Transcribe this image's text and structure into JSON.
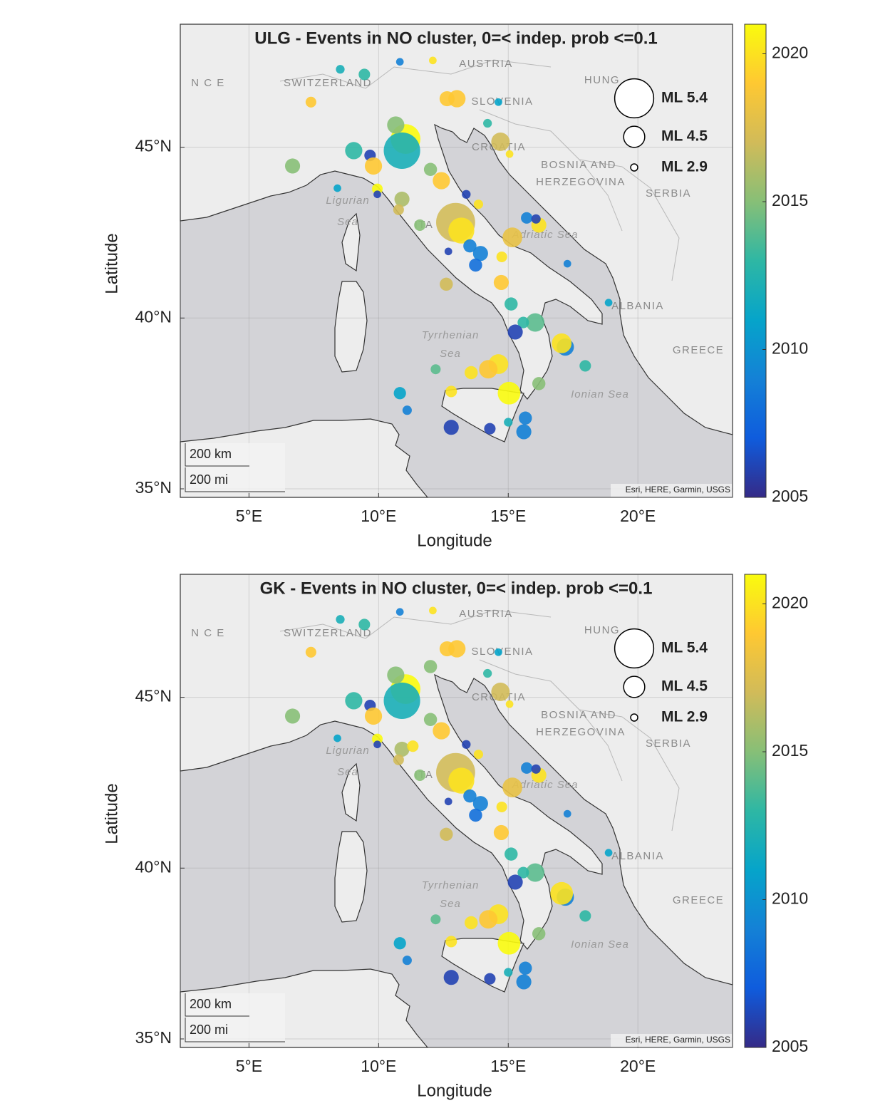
{
  "chart_data": [
    {
      "type": "scatter",
      "title": "ULG - Events in NO cluster, 0=< indep. prob <=0.1",
      "xlabel": "Longitude",
      "ylabel": "Latitude",
      "xlim": [
        2.35,
        23.65
      ],
      "ylim": [
        34.75,
        48.6
      ],
      "xticks": [
        {
          "value": 5,
          "label": "5°E"
        },
        {
          "value": 10,
          "label": "10°E"
        },
        {
          "value": 15,
          "label": "15°E"
        },
        {
          "value": 20,
          "label": "20°E"
        }
      ],
      "yticks": [
        {
          "value": 35,
          "label": "35°N"
        },
        {
          "value": 40,
          "label": "40°N"
        },
        {
          "value": 45,
          "label": "45°N"
        }
      ],
      "grid": true,
      "x": [
        11.04,
        10.9,
        12.97,
        13.19,
        9.04,
        9.67,
        9.8,
        6.68,
        7.39,
        8.52,
        9.45,
        10.82,
        12.09,
        12.64,
        13.02,
        14.62,
        14.7,
        15.05,
        14.2,
        10.66,
        12.0,
        12.42,
        9.95,
        10.9,
        10.77,
        11.59,
        13.38,
        13.85,
        13.52,
        13.93,
        13.74,
        12.69,
        15.16,
        14.75,
        16.18,
        15.71,
        16.07,
        17.28,
        18.87,
        12.61,
        14.73,
        15.11,
        16.04,
        15.58,
        15.27,
        17.2,
        17.06,
        17.97,
        14.62,
        14.23,
        12.2,
        13.57,
        15.03,
        16.18,
        12.8,
        10.82,
        11.1,
        12.8,
        14.29,
        15.66,
        15.6,
        15.0,
        8.41,
        9.95
      ],
      "y": [
        45.24,
        44.9,
        42.8,
        42.56,
        44.9,
        44.76,
        44.45,
        44.45,
        46.32,
        47.28,
        47.13,
        47.5,
        47.54,
        46.42,
        46.42,
        46.32,
        45.16,
        44.8,
        45.7,
        45.65,
        44.35,
        44.02,
        43.78,
        43.48,
        43.17,
        42.72,
        43.62,
        43.33,
        42.11,
        41.89,
        41.55,
        41.95,
        42.36,
        41.79,
        42.72,
        42.93,
        42.9,
        41.59,
        40.45,
        40.99,
        41.04,
        40.41,
        39.87,
        39.87,
        39.59,
        39.15,
        39.26,
        38.6,
        38.65,
        38.5,
        38.5,
        38.4,
        37.8,
        38.08,
        37.85,
        37.8,
        37.3,
        36.8,
        36.76,
        37.07,
        36.67,
        36.95,
        43.8,
        43.62
      ],
      "color_values": [
        2021,
        2012,
        2017,
        2020,
        2013,
        2006,
        2019,
        2015,
        2019,
        2012,
        2013,
        2009,
        2020,
        2019,
        2019,
        2011,
        2017,
        2020,
        2013,
        2015,
        2015,
        2019,
        2021,
        2016,
        2017,
        2015,
        2006,
        2020,
        2009,
        2009,
        2008,
        2006,
        2018,
        2020,
        2020,
        2009,
        2006,
        2009,
        2011,
        2017,
        2019,
        2013,
        2014,
        2013,
        2006,
        2009,
        2020,
        2013,
        2020,
        2019,
        2014,
        2020,
        2021,
        2015,
        2020,
        2011,
        2009,
        2006,
        2006,
        2009,
        2009,
        2012,
        2011,
        2006
      ],
      "sizes": [
        5.0,
        5.3,
        5.4,
        4.8,
        4.2,
        3.6,
        4.2,
        4.0,
        3.5,
        3.2,
        3.6,
        3.0,
        3.0,
        4.0,
        4.2,
        3.0,
        4.3,
        3.0,
        3.2,
        4.2,
        3.8,
        4.2,
        3.5,
        4.0,
        3.5,
        3.6,
        3.2,
        3.3,
        3.8,
        4.0,
        3.8,
        3.0,
        4.4,
        3.5,
        4.0,
        3.6,
        3.3,
        3.0,
        3.0,
        3.8,
        4.0,
        3.8,
        4.3,
        3.6,
        4.0,
        4.2,
        4.4,
        3.6,
        4.4,
        4.3,
        3.4,
        3.8,
        4.6,
        3.8,
        3.6,
        3.7,
        3.3,
        4.0,
        3.6,
        3.8,
        4.0,
        3.2,
        3.0,
        3.0
      ],
      "colorbar": {
        "colormap": "parula",
        "lim": [
          2005,
          2021
        ],
        "ticks": [
          2005,
          2010,
          2015,
          2020
        ]
      },
      "size_legend": [
        {
          "value": 5.4,
          "label": "ML 5.4"
        },
        {
          "value": 4.5,
          "label": "ML 4.5"
        },
        {
          "value": 2.9,
          "label": "ML 2.9"
        }
      ],
      "map_labels": [
        "N C E",
        "SWITZERLAND",
        "AUSTRIA",
        "HUNG",
        "SLOVENIA",
        "CROATIA",
        "BOSNIA AND",
        "HERZEGOVINA",
        "SERBIA",
        "ITA",
        "ALBANIA",
        "GREECE"
      ],
      "sea_labels": [
        "Ligurian",
        "Sea",
        "Adriatic Sea",
        "Tyrrhenian",
        "Sea",
        "Ionian Sea"
      ],
      "scale_bar": [
        "200 km",
        "200 mi"
      ],
      "attribution": "Esri, HERE, Garmin, USGS"
    },
    {
      "type": "scatter",
      "title": "GK - Events in NO cluster, 0=< indep. prob <=0.1",
      "xlabel": "Longitude",
      "ylabel": "Latitude",
      "xlim": [
        2.35,
        23.65
      ],
      "ylim": [
        34.75,
        48.6
      ],
      "xticks": [
        {
          "value": 5,
          "label": "5°E"
        },
        {
          "value": 10,
          "label": "10°E"
        },
        {
          "value": 15,
          "label": "15°E"
        },
        {
          "value": 20,
          "label": "20°E"
        }
      ],
      "yticks": [
        {
          "value": 35,
          "label": "35°N"
        },
        {
          "value": 40,
          "label": "40°N"
        },
        {
          "value": 45,
          "label": "45°N"
        }
      ],
      "grid": true,
      "x": [
        11.04,
        10.9,
        12.97,
        13.19,
        9.04,
        9.67,
        9.8,
        6.68,
        7.39,
        8.52,
        9.45,
        10.82,
        12.09,
        12.64,
        13.02,
        14.62,
        14.7,
        15.05,
        14.2,
        10.66,
        12.0,
        12.42,
        9.95,
        10.9,
        10.77,
        11.59,
        13.38,
        13.85,
        13.52,
        13.93,
        13.74,
        12.69,
        15.16,
        14.75,
        16.18,
        15.71,
        16.07,
        17.28,
        18.87,
        12.61,
        14.73,
        15.11,
        16.04,
        15.58,
        15.27,
        17.2,
        17.06,
        17.97,
        14.62,
        14.23,
        12.2,
        13.57,
        15.03,
        16.18,
        12.8,
        10.82,
        11.1,
        12.8,
        14.29,
        15.66,
        15.6,
        15.0,
        8.41,
        9.95,
        12.0,
        11.32
      ],
      "y": [
        45.24,
        44.9,
        42.8,
        42.56,
        44.9,
        44.76,
        44.45,
        44.45,
        46.32,
        47.28,
        47.13,
        47.5,
        47.54,
        46.42,
        46.42,
        46.32,
        45.16,
        44.8,
        45.7,
        45.65,
        44.35,
        44.02,
        43.78,
        43.48,
        43.17,
        42.72,
        43.62,
        43.33,
        42.11,
        41.89,
        41.55,
        41.95,
        42.36,
        41.79,
        42.72,
        42.93,
        42.9,
        41.59,
        40.45,
        40.99,
        41.04,
        40.41,
        39.87,
        39.87,
        39.59,
        39.15,
        39.26,
        38.6,
        38.65,
        38.5,
        38.5,
        38.4,
        37.8,
        38.08,
        37.85,
        37.8,
        37.3,
        36.8,
        36.76,
        37.07,
        36.67,
        36.95,
        43.8,
        43.62,
        45.9,
        43.57
      ],
      "color_values": [
        2021,
        2012,
        2017,
        2020,
        2013,
        2006,
        2019,
        2015,
        2019,
        2012,
        2013,
        2009,
        2020,
        2019,
        2019,
        2011,
        2017,
        2020,
        2013,
        2015,
        2015,
        2019,
        2021,
        2016,
        2017,
        2015,
        2006,
        2020,
        2009,
        2009,
        2008,
        2006,
        2018,
        2020,
        2020,
        2009,
        2006,
        2009,
        2011,
        2017,
        2019,
        2013,
        2014,
        2013,
        2006,
        2009,
        2020,
        2013,
        2020,
        2019,
        2014,
        2020,
        2021,
        2015,
        2020,
        2011,
        2009,
        2006,
        2006,
        2009,
        2009,
        2012,
        2011,
        2006,
        2015,
        2020
      ],
      "sizes": [
        5.0,
        5.3,
        5.4,
        4.8,
        4.2,
        3.6,
        4.2,
        4.0,
        3.5,
        3.2,
        3.6,
        3.0,
        3.0,
        4.0,
        4.2,
        3.0,
        4.3,
        3.0,
        3.2,
        4.2,
        3.8,
        4.2,
        3.5,
        4.0,
        3.5,
        3.6,
        3.2,
        3.3,
        3.8,
        4.0,
        3.8,
        3.0,
        4.4,
        3.5,
        4.0,
        3.6,
        3.3,
        3.0,
        3.0,
        3.8,
        4.0,
        3.8,
        4.3,
        3.6,
        4.0,
        4.2,
        4.6,
        3.6,
        4.4,
        4.3,
        3.4,
        3.8,
        4.6,
        3.8,
        3.6,
        3.7,
        3.3,
        4.0,
        3.6,
        3.8,
        4.0,
        3.2,
        3.0,
        3.0,
        3.8,
        3.6
      ],
      "colorbar": {
        "colormap": "parula",
        "lim": [
          2005,
          2021
        ],
        "ticks": [
          2005,
          2010,
          2015,
          2020
        ]
      },
      "size_legend": [
        {
          "value": 5.4,
          "label": "ML 5.4"
        },
        {
          "value": 4.5,
          "label": "ML 4.5"
        },
        {
          "value": 2.9,
          "label": "ML 2.9"
        }
      ],
      "map_labels": [
        "N C E",
        "SWITZERLAND",
        "AUSTRIA",
        "HUNG",
        "SLOVENIA",
        "CROATIA",
        "BOSNIA AND",
        "HERZEGOVINA",
        "SERBIA",
        "ITA",
        "ALBANIA",
        "GREECE"
      ],
      "sea_labels": [
        "Ligurian",
        "Sea",
        "Adriatic Sea",
        "Tyrrhenian",
        "Sea",
        "Ionian Sea"
      ],
      "scale_bar": [
        "200 km",
        "200 mi"
      ],
      "attribution": "Esri, HERE, Garmin, USGS"
    }
  ]
}
